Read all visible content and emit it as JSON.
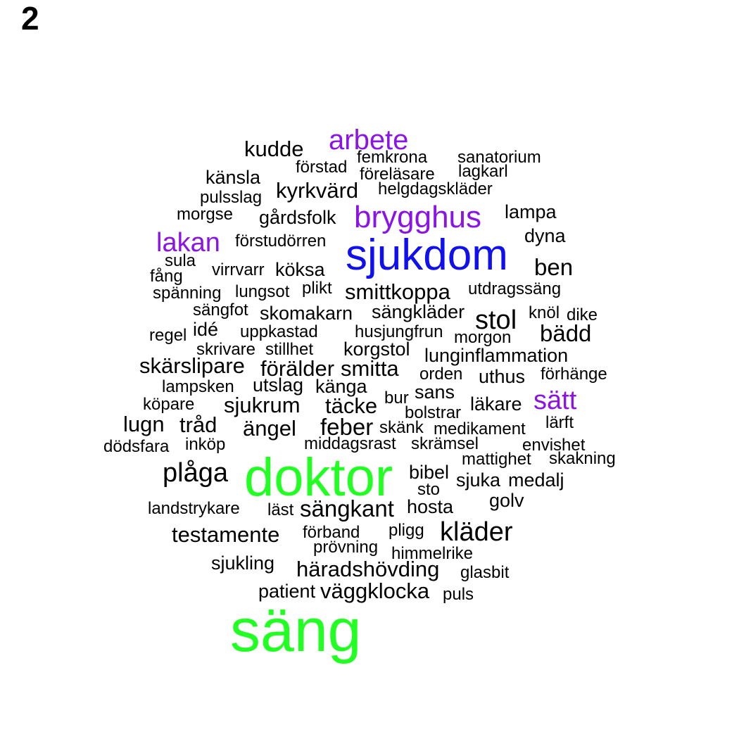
{
  "panel_label": "2",
  "colors": {
    "large": "#22ff22",
    "medium": "#1010ee",
    "accent": "#8a14e6",
    "default": "#000000"
  },
  "words": [
    {
      "text": "säng",
      "color": "large"
    },
    {
      "text": "doktor",
      "color": "large"
    },
    {
      "text": "sjukdom",
      "color": "medium"
    },
    {
      "text": "brygghus",
      "color": "accent"
    },
    {
      "text": "arbete",
      "color": "accent"
    },
    {
      "text": "lakan",
      "color": "accent"
    },
    {
      "text": "sätt",
      "color": "accent"
    },
    {
      "text": "kudde",
      "color": "default"
    },
    {
      "text": "femkrona",
      "color": "default"
    },
    {
      "text": "sanatorium",
      "color": "default"
    },
    {
      "text": "förstad",
      "color": "default"
    },
    {
      "text": "föreläsare",
      "color": "default"
    },
    {
      "text": "lagkarl",
      "color": "default"
    },
    {
      "text": "känsla",
      "color": "default"
    },
    {
      "text": "kyrkvärd",
      "color": "default"
    },
    {
      "text": "helgdagskläder",
      "color": "default"
    },
    {
      "text": "pulsslag",
      "color": "default"
    },
    {
      "text": "morgse",
      "color": "default"
    },
    {
      "text": "gårdsfolk",
      "color": "default"
    },
    {
      "text": "lampa",
      "color": "default"
    },
    {
      "text": "dyna",
      "color": "default"
    },
    {
      "text": "förstudörren",
      "color": "default"
    },
    {
      "text": "sula",
      "color": "default"
    },
    {
      "text": "fång",
      "color": "default"
    },
    {
      "text": "virrvarr",
      "color": "default"
    },
    {
      "text": "köksa",
      "color": "default"
    },
    {
      "text": "ben",
      "color": "default"
    },
    {
      "text": "spänning",
      "color": "default"
    },
    {
      "text": "lungsot",
      "color": "default"
    },
    {
      "text": "plikt",
      "color": "default"
    },
    {
      "text": "smittkoppa",
      "color": "default"
    },
    {
      "text": "utdragssäng",
      "color": "default"
    },
    {
      "text": "sängfot",
      "color": "default"
    },
    {
      "text": "skomakarn",
      "color": "default"
    },
    {
      "text": "sängkläder",
      "color": "default"
    },
    {
      "text": "knöl",
      "color": "default"
    },
    {
      "text": "dike",
      "color": "default"
    },
    {
      "text": "stol",
      "color": "default"
    },
    {
      "text": "regel",
      "color": "default"
    },
    {
      "text": "idé",
      "color": "default"
    },
    {
      "text": "uppkastad",
      "color": "default"
    },
    {
      "text": "husjungfrun",
      "color": "default"
    },
    {
      "text": "morgon",
      "color": "default"
    },
    {
      "text": "bädd",
      "color": "default"
    },
    {
      "text": "skrivare",
      "color": "default"
    },
    {
      "text": "stillhet",
      "color": "default"
    },
    {
      "text": "korgstol",
      "color": "default"
    },
    {
      "text": "lunginflammation",
      "color": "default"
    },
    {
      "text": "skärslipare",
      "color": "default"
    },
    {
      "text": "förälder",
      "color": "default"
    },
    {
      "text": "smitta",
      "color": "default"
    },
    {
      "text": "orden",
      "color": "default"
    },
    {
      "text": "uthus",
      "color": "default"
    },
    {
      "text": "förhänge",
      "color": "default"
    },
    {
      "text": "lampsken",
      "color": "default"
    },
    {
      "text": "utslag",
      "color": "default"
    },
    {
      "text": "känga",
      "color": "default"
    },
    {
      "text": "sans",
      "color": "default"
    },
    {
      "text": "bur",
      "color": "default"
    },
    {
      "text": "köpare",
      "color": "default"
    },
    {
      "text": "sjukrum",
      "color": "default"
    },
    {
      "text": "täcke",
      "color": "default"
    },
    {
      "text": "bolstrar",
      "color": "default"
    },
    {
      "text": "läkare",
      "color": "default"
    },
    {
      "text": "lugn",
      "color": "default"
    },
    {
      "text": "tråd",
      "color": "default"
    },
    {
      "text": "ängel",
      "color": "default"
    },
    {
      "text": "feber",
      "color": "default"
    },
    {
      "text": "skänk",
      "color": "default"
    },
    {
      "text": "medikament",
      "color": "default"
    },
    {
      "text": "lärft",
      "color": "default"
    },
    {
      "text": "dödsfara",
      "color": "default"
    },
    {
      "text": "inköp",
      "color": "default"
    },
    {
      "text": "middagsrast",
      "color": "default"
    },
    {
      "text": "skrämsel",
      "color": "default"
    },
    {
      "text": "envishet",
      "color": "default"
    },
    {
      "text": "mattighet",
      "color": "default"
    },
    {
      "text": "skakning",
      "color": "default"
    },
    {
      "text": "plåga",
      "color": "default"
    },
    {
      "text": "bibel",
      "color": "default"
    },
    {
      "text": "sjuka",
      "color": "default"
    },
    {
      "text": "medalj",
      "color": "default"
    },
    {
      "text": "sto",
      "color": "default"
    },
    {
      "text": "golv",
      "color": "default"
    },
    {
      "text": "landstrykare",
      "color": "default"
    },
    {
      "text": "läst",
      "color": "default"
    },
    {
      "text": "sängkant",
      "color": "default"
    },
    {
      "text": "hosta",
      "color": "default"
    },
    {
      "text": "testamente",
      "color": "default"
    },
    {
      "text": "förband",
      "color": "default"
    },
    {
      "text": "pligg",
      "color": "default"
    },
    {
      "text": "kläder",
      "color": "default"
    },
    {
      "text": "prövning",
      "color": "default"
    },
    {
      "text": "himmelrike",
      "color": "default"
    },
    {
      "text": "sjukling",
      "color": "default"
    },
    {
      "text": "häradshövding",
      "color": "default"
    },
    {
      "text": "glasbit",
      "color": "default"
    },
    {
      "text": "patient",
      "color": "default"
    },
    {
      "text": "väggklocka",
      "color": "default"
    },
    {
      "text": "puls",
      "color": "default"
    }
  ]
}
